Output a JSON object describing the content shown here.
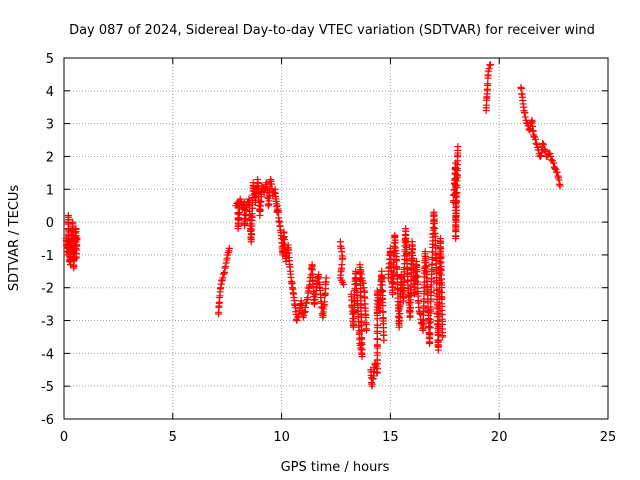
{
  "chart_data": {
    "type": "scatter",
    "title": "Day 087 of 2024, Sidereal Day-to-day VTEC variation (SDTVAR) for receiver wind",
    "xlabel": "GPS time / hours",
    "ylabel": "SDTVAR / TECUs",
    "xlim": [
      0,
      25
    ],
    "ylim": [
      -6,
      5
    ],
    "xticks": [
      0,
      5,
      10,
      15,
      20,
      25
    ],
    "yticks": [
      -6,
      -5,
      -4,
      -3,
      -2,
      -1,
      0,
      1,
      2,
      3,
      4,
      5
    ],
    "grid": true,
    "marker": "plus",
    "color": "#ff0000",
    "series": [
      {
        "name": "SDTVAR",
        "segments": [
          [
            [
              0.1,
              -0.5
            ],
            [
              0.15,
              -1.0
            ],
            [
              0.2,
              -0.8
            ],
            [
              0.2,
              0.2
            ],
            [
              0.25,
              -1.2
            ],
            [
              0.3,
              -0.6
            ],
            [
              0.3,
              -1.3
            ],
            [
              0.35,
              -0.4
            ],
            [
              0.4,
              -0.9
            ],
            [
              0.4,
              0.0
            ],
            [
              0.45,
              -1.4
            ],
            [
              0.5,
              -0.7
            ],
            [
              0.55,
              -0.2
            ],
            [
              0.55,
              -1.1
            ],
            [
              0.6,
              -0.5
            ]
          ],
          [
            [
              7.1,
              -2.8
            ],
            [
              7.15,
              -2.3
            ],
            [
              7.2,
              -2.0
            ],
            [
              7.3,
              -1.7
            ],
            [
              7.4,
              -1.4
            ],
            [
              7.5,
              -1.1
            ],
            [
              7.6,
              -0.8
            ]
          ],
          [
            [
              7.9,
              0.5
            ],
            [
              8.0,
              0.6
            ],
            [
              8.0,
              -0.2
            ],
            [
              8.1,
              0.7
            ],
            [
              8.2,
              0.4
            ],
            [
              8.3,
              0.6
            ],
            [
              8.3,
              -0.1
            ],
            [
              8.4,
              0.5
            ],
            [
              8.5,
              0.7
            ],
            [
              8.6,
              -0.6
            ],
            [
              8.7,
              1.2
            ],
            [
              8.8,
              0.6
            ],
            [
              8.9,
              1.3
            ],
            [
              9.0,
              0.2
            ],
            [
              9.1,
              1.1
            ],
            [
              9.2,
              0.9
            ],
            [
              9.3,
              1.2
            ],
            [
              9.4,
              0.5
            ],
            [
              9.5,
              1.3
            ],
            [
              9.6,
              0.8
            ],
            [
              9.7,
              1.0
            ],
            [
              9.8,
              0.3
            ]
          ],
          [
            [
              9.8,
              0.5
            ],
            [
              9.9,
              0.0
            ],
            [
              10.0,
              -0.5
            ],
            [
              10.05,
              -1.0
            ],
            [
              10.1,
              -0.3
            ],
            [
              10.2,
              -1.2
            ],
            [
              10.3,
              -0.7
            ],
            [
              10.4,
              -1.5
            ],
            [
              10.5,
              -2.0
            ],
            [
              10.6,
              -2.5
            ],
            [
              10.7,
              -3.0
            ],
            [
              10.8,
              -2.8
            ],
            [
              10.9,
              -2.4
            ],
            [
              11.0,
              -2.9
            ],
            [
              11.1,
              -2.6
            ],
            [
              11.2,
              -2.3
            ],
            [
              11.3,
              -1.8
            ],
            [
              11.4,
              -1.3
            ],
            [
              11.5,
              -2.5
            ],
            [
              11.6,
              -2.0
            ],
            [
              11.7,
              -1.6
            ],
            [
              11.8,
              -2.3
            ],
            [
              11.9,
              -2.9
            ],
            [
              12.0,
              -2.2
            ],
            [
              12.05,
              -1.7
            ]
          ],
          [
            [
              12.7,
              -0.6
            ],
            [
              12.8,
              -1.1
            ],
            [
              12.7,
              -1.7
            ],
            [
              12.85,
              -1.9
            ]
          ],
          [
            [
              13.2,
              -2.2
            ],
            [
              13.3,
              -3.2
            ],
            [
              13.4,
              -1.5
            ],
            [
              13.5,
              -2.6
            ],
            [
              13.6,
              -3.7
            ],
            [
              13.7,
              -4.1
            ],
            [
              13.6,
              -1.3
            ],
            [
              13.8,
              -2.1
            ],
            [
              13.9,
              -3.3
            ]
          ],
          [
            [
              14.1,
              -4.5
            ],
            [
              14.15,
              -5.0
            ],
            [
              14.3,
              -4.3
            ],
            [
              14.4,
              -4.6
            ],
            [
              14.4,
              -2.1
            ],
            [
              14.5,
              -2.7
            ],
            [
              14.6,
              -1.5
            ],
            [
              14.7,
              -3.6
            ]
          ],
          [
            [
              14.9,
              -1.7
            ],
            [
              15.0,
              -0.8
            ],
            [
              15.1,
              -2.2
            ],
            [
              15.2,
              -0.4
            ],
            [
              15.3,
              -1.4
            ],
            [
              15.4,
              -3.2
            ],
            [
              15.5,
              -1.6
            ],
            [
              15.6,
              -2.4
            ],
            [
              15.7,
              -0.2
            ],
            [
              15.8,
              -1.8
            ],
            [
              15.9,
              -2.9
            ],
            [
              16.0,
              -0.6
            ],
            [
              16.1,
              -2.2
            ],
            [
              16.2,
              -1.2
            ],
            [
              16.3,
              -2.6
            ],
            [
              16.5,
              -3.3
            ],
            [
              16.6,
              -0.9
            ],
            [
              16.7,
              -2.0
            ],
            [
              16.8,
              -3.7
            ],
            [
              16.9,
              -1.5
            ],
            [
              17.0,
              0.3
            ],
            [
              17.1,
              -1.1
            ],
            [
              17.2,
              -3.9
            ],
            [
              17.3,
              -0.5
            ],
            [
              17.4,
              -3.5
            ]
          ],
          [
            [
              17.9,
              0.6
            ],
            [
              18.0,
              1.8
            ],
            [
              18.0,
              -0.5
            ],
            [
              18.1,
              2.3
            ]
          ],
          [
            [
              19.4,
              3.4
            ],
            [
              19.45,
              4.0
            ],
            [
              19.5,
              4.6
            ],
            [
              19.6,
              4.8
            ]
          ],
          [
            [
              21.0,
              4.1
            ],
            [
              21.1,
              3.6
            ],
            [
              21.2,
              3.2
            ],
            [
              21.3,
              3.0
            ],
            [
              21.4,
              2.8
            ],
            [
              21.5,
              3.1
            ],
            [
              21.6,
              2.6
            ],
            [
              21.7,
              2.4
            ],
            [
              21.8,
              2.2
            ],
            [
              21.9,
              2.0
            ],
            [
              22.0,
              2.4
            ],
            [
              22.1,
              2.2
            ],
            [
              22.2,
              2.0
            ],
            [
              22.3,
              2.1
            ],
            [
              22.4,
              1.9
            ],
            [
              22.5,
              1.8
            ],
            [
              22.6,
              1.6
            ],
            [
              22.7,
              1.4
            ],
            [
              22.8,
              1.1
            ]
          ]
        ]
      }
    ]
  }
}
